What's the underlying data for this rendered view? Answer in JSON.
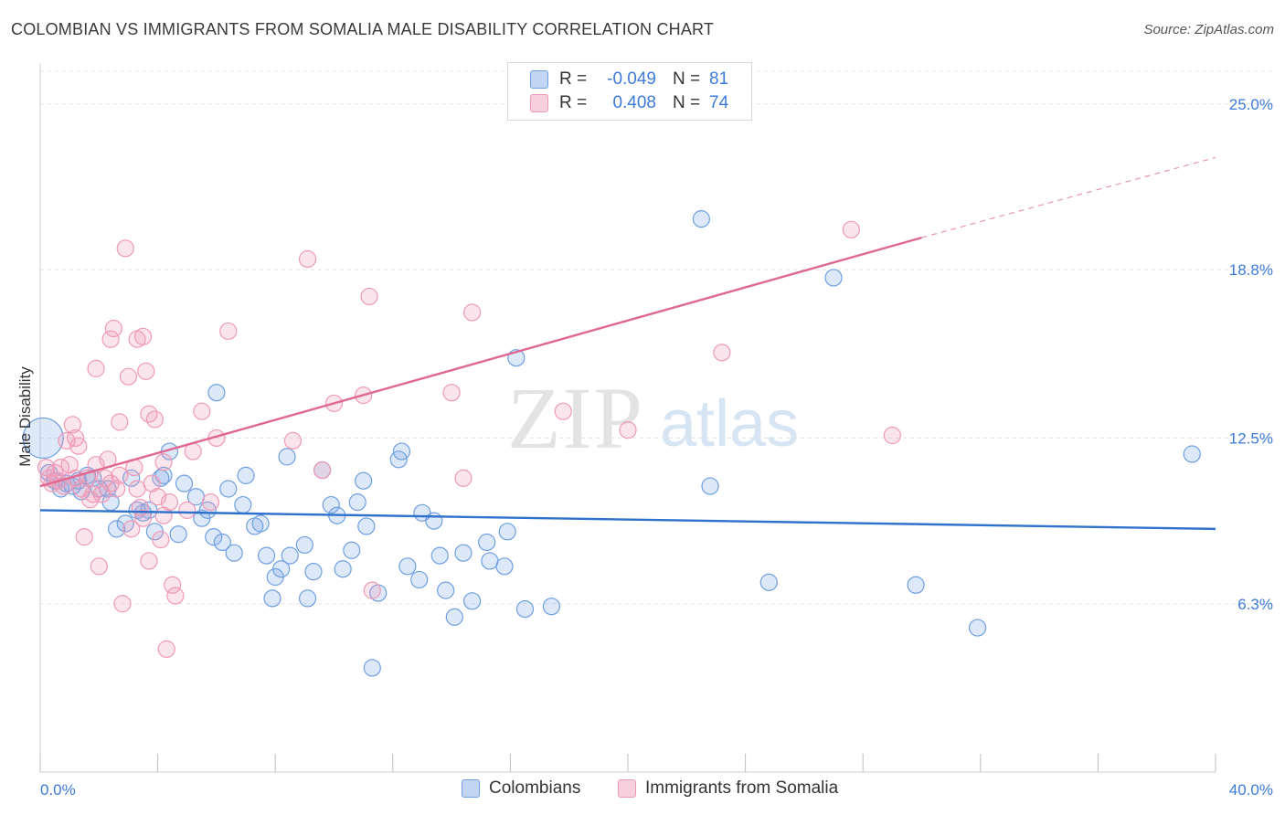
{
  "header": {
    "title": "COLOMBIAN VS IMMIGRANTS FROM SOMALIA MALE DISABILITY CORRELATION CHART",
    "source": "Source: ZipAtlas.com"
  },
  "watermark": {
    "zip": "ZIP",
    "atlas": "atlas"
  },
  "legend_top": {
    "rows": [
      {
        "r_label": "R =",
        "r_value": "-0.049",
        "n_label": "N =",
        "n_value": "81"
      },
      {
        "r_label": "R =",
        "r_value": "0.408",
        "n_label": "N =",
        "n_value": "74"
      }
    ]
  },
  "legend_bottom": {
    "items": [
      {
        "label": "Colombians"
      },
      {
        "label": "Immigrants from Somalia"
      }
    ]
  },
  "colors": {
    "colombians_fill": "rgba(120,165,230,0.25)",
    "colombians_stroke": "#6f9fe0",
    "colombians_line": "#2f72cc",
    "somalia_fill": "rgba(240,150,180,0.25)",
    "somalia_stroke": "#ee9ab6",
    "somalia_line": "#e06890",
    "tick_label": "#3d7bd9",
    "grid": "#e4e4e4"
  },
  "chart_data": {
    "type": "scatter",
    "ylabel": "Male Disability",
    "xlabel": "",
    "xlim": [
      0,
      40
    ],
    "ylim": [
      0,
      26.5
    ],
    "x_tick_labels": [
      {
        "value": 0,
        "label": "0.0%"
      },
      {
        "value": 40,
        "label": "40.0%"
      }
    ],
    "y_tick_labels": [
      {
        "value": 6.3,
        "label": "6.3%"
      },
      {
        "value": 12.5,
        "label": "12.5%"
      },
      {
        "value": 18.8,
        "label": "18.8%"
      },
      {
        "value": 25.0,
        "label": "25.0%"
      }
    ],
    "grid": "horizontal dashed",
    "series": [
      {
        "name": "Colombians",
        "trend": {
          "x": [
            0,
            40
          ],
          "y": [
            9.8,
            9.1
          ]
        },
        "points": [
          {
            "x": 0.1,
            "y": 12.5,
            "big": true
          },
          {
            "x": 0.3,
            "y": 11.2
          },
          {
            "x": 0.5,
            "y": 10.9
          },
          {
            "x": 0.7,
            "y": 10.6
          },
          {
            "x": 0.9,
            "y": 10.8
          },
          {
            "x": 1.1,
            "y": 10.7
          },
          {
            "x": 1.3,
            "y": 10.9
          },
          {
            "x": 1.4,
            "y": 10.5
          },
          {
            "x": 1.6,
            "y": 11.1
          },
          {
            "x": 1.8,
            "y": 11.0
          },
          {
            "x": 2.0,
            "y": 10.6
          },
          {
            "x": 2.3,
            "y": 10.6
          },
          {
            "x": 2.4,
            "y": 10.1
          },
          {
            "x": 2.6,
            "y": 9.1
          },
          {
            "x": 2.9,
            "y": 9.3
          },
          {
            "x": 3.1,
            "y": 11.0
          },
          {
            "x": 3.3,
            "y": 9.8
          },
          {
            "x": 3.5,
            "y": 9.7
          },
          {
            "x": 3.7,
            "y": 9.8
          },
          {
            "x": 3.9,
            "y": 9.0
          },
          {
            "x": 4.1,
            "y": 11.0
          },
          {
            "x": 4.2,
            "y": 11.1
          },
          {
            "x": 4.4,
            "y": 12.0
          },
          {
            "x": 4.7,
            "y": 8.9
          },
          {
            "x": 4.9,
            "y": 10.8
          },
          {
            "x": 5.3,
            "y": 10.3
          },
          {
            "x": 5.5,
            "y": 9.5
          },
          {
            "x": 5.7,
            "y": 9.8
          },
          {
            "x": 5.9,
            "y": 8.8
          },
          {
            "x": 6.0,
            "y": 14.2
          },
          {
            "x": 6.2,
            "y": 8.6
          },
          {
            "x": 6.4,
            "y": 10.6
          },
          {
            "x": 6.6,
            "y": 8.2
          },
          {
            "x": 6.9,
            "y": 10.0
          },
          {
            "x": 7.0,
            "y": 11.1
          },
          {
            "x": 7.3,
            "y": 9.2
          },
          {
            "x": 7.5,
            "y": 9.3
          },
          {
            "x": 7.7,
            "y": 8.1
          },
          {
            "x": 7.9,
            "y": 6.5
          },
          {
            "x": 8.0,
            "y": 7.3
          },
          {
            "x": 8.2,
            "y": 7.6
          },
          {
            "x": 8.4,
            "y": 11.8
          },
          {
            "x": 8.5,
            "y": 8.1
          },
          {
            "x": 9.0,
            "y": 8.5
          },
          {
            "x": 9.1,
            "y": 6.5
          },
          {
            "x": 9.3,
            "y": 7.5
          },
          {
            "x": 9.6,
            "y": 11.3
          },
          {
            "x": 9.9,
            "y": 10.0
          },
          {
            "x": 10.1,
            "y": 9.6
          },
          {
            "x": 10.3,
            "y": 7.6
          },
          {
            "x": 10.6,
            "y": 8.3
          },
          {
            "x": 10.8,
            "y": 10.1
          },
          {
            "x": 11.0,
            "y": 10.9
          },
          {
            "x": 11.1,
            "y": 9.2
          },
          {
            "x": 11.3,
            "y": 3.9
          },
          {
            "x": 11.5,
            "y": 6.7
          },
          {
            "x": 12.2,
            "y": 11.7
          },
          {
            "x": 12.3,
            "y": 12.0
          },
          {
            "x": 12.5,
            "y": 7.7
          },
          {
            "x": 12.9,
            "y": 7.2
          },
          {
            "x": 13.0,
            "y": 9.7
          },
          {
            "x": 13.4,
            "y": 9.4
          },
          {
            "x": 13.6,
            "y": 8.1
          },
          {
            "x": 13.8,
            "y": 6.8
          },
          {
            "x": 14.1,
            "y": 5.8
          },
          {
            "x": 14.4,
            "y": 8.2
          },
          {
            "x": 14.7,
            "y": 6.4
          },
          {
            "x": 15.2,
            "y": 8.6
          },
          {
            "x": 15.3,
            "y": 7.9
          },
          {
            "x": 15.8,
            "y": 7.7
          },
          {
            "x": 15.9,
            "y": 9.0
          },
          {
            "x": 16.2,
            "y": 15.5
          },
          {
            "x": 16.5,
            "y": 6.1
          },
          {
            "x": 17.4,
            "y": 6.2
          },
          {
            "x": 22.5,
            "y": 20.7
          },
          {
            "x": 22.8,
            "y": 10.7
          },
          {
            "x": 24.8,
            "y": 7.1
          },
          {
            "x": 27.0,
            "y": 18.5
          },
          {
            "x": 29.8,
            "y": 7.0
          },
          {
            "x": 31.9,
            "y": 5.4
          },
          {
            "x": 39.2,
            "y": 11.9
          }
        ]
      },
      {
        "name": "Immigrants from Somalia",
        "trend": {
          "x": [
            0,
            30
          ],
          "y": [
            10.7,
            20.0
          ]
        },
        "trend_extension": {
          "x": [
            30,
            40
          ],
          "y": [
            20.0,
            23.0
          ]
        },
        "points": [
          {
            "x": 0.2,
            "y": 11.4
          },
          {
            "x": 0.3,
            "y": 11.0
          },
          {
            "x": 0.4,
            "y": 10.8
          },
          {
            "x": 0.5,
            "y": 11.2
          },
          {
            "x": 0.6,
            "y": 10.9
          },
          {
            "x": 0.7,
            "y": 11.4
          },
          {
            "x": 0.8,
            "y": 10.7
          },
          {
            "x": 0.9,
            "y": 12.4
          },
          {
            "x": 1.0,
            "y": 11.5
          },
          {
            "x": 1.1,
            "y": 13.0
          },
          {
            "x": 1.2,
            "y": 11.0
          },
          {
            "x": 1.2,
            "y": 12.5
          },
          {
            "x": 1.3,
            "y": 12.2
          },
          {
            "x": 1.4,
            "y": 10.6
          },
          {
            "x": 1.5,
            "y": 8.8
          },
          {
            "x": 1.6,
            "y": 11.0
          },
          {
            "x": 1.7,
            "y": 10.2
          },
          {
            "x": 1.8,
            "y": 10.4
          },
          {
            "x": 1.9,
            "y": 11.5
          },
          {
            "x": 1.9,
            "y": 15.1
          },
          {
            "x": 2.0,
            "y": 7.7
          },
          {
            "x": 2.1,
            "y": 10.4
          },
          {
            "x": 2.2,
            "y": 11.0
          },
          {
            "x": 2.3,
            "y": 11.7
          },
          {
            "x": 2.4,
            "y": 10.8
          },
          {
            "x": 2.4,
            "y": 16.2
          },
          {
            "x": 2.5,
            "y": 16.6
          },
          {
            "x": 2.6,
            "y": 10.6
          },
          {
            "x": 2.7,
            "y": 11.1
          },
          {
            "x": 2.7,
            "y": 13.1
          },
          {
            "x": 2.8,
            "y": 6.3
          },
          {
            "x": 2.9,
            "y": 19.6
          },
          {
            "x": 3.0,
            "y": 14.8
          },
          {
            "x": 3.1,
            "y": 9.1
          },
          {
            "x": 3.2,
            "y": 11.4
          },
          {
            "x": 3.3,
            "y": 10.6
          },
          {
            "x": 3.3,
            "y": 16.2
          },
          {
            "x": 3.4,
            "y": 9.9
          },
          {
            "x": 3.5,
            "y": 9.5
          },
          {
            "x": 3.5,
            "y": 16.3
          },
          {
            "x": 3.6,
            "y": 15.0
          },
          {
            "x": 3.7,
            "y": 7.9
          },
          {
            "x": 3.7,
            "y": 13.4
          },
          {
            "x": 3.8,
            "y": 10.8
          },
          {
            "x": 3.9,
            "y": 13.2
          },
          {
            "x": 4.0,
            "y": 10.3
          },
          {
            "x": 4.1,
            "y": 8.7
          },
          {
            "x": 4.2,
            "y": 11.6
          },
          {
            "x": 4.2,
            "y": 9.6
          },
          {
            "x": 4.3,
            "y": 4.6
          },
          {
            "x": 4.4,
            "y": 10.1
          },
          {
            "x": 4.5,
            "y": 7.0
          },
          {
            "x": 4.6,
            "y": 6.6
          },
          {
            "x": 5.0,
            "y": 9.8
          },
          {
            "x": 5.2,
            "y": 12.0
          },
          {
            "x": 5.5,
            "y": 13.5
          },
          {
            "x": 5.8,
            "y": 10.1
          },
          {
            "x": 6.0,
            "y": 12.5
          },
          {
            "x": 6.4,
            "y": 16.5
          },
          {
            "x": 8.6,
            "y": 12.4
          },
          {
            "x": 9.1,
            "y": 19.2
          },
          {
            "x": 9.6,
            "y": 11.3
          },
          {
            "x": 10.0,
            "y": 13.8
          },
          {
            "x": 11.0,
            "y": 14.1
          },
          {
            "x": 11.2,
            "y": 17.8
          },
          {
            "x": 11.3,
            "y": 6.8
          },
          {
            "x": 14.0,
            "y": 14.2
          },
          {
            "x": 14.4,
            "y": 11.0
          },
          {
            "x": 14.7,
            "y": 17.2
          },
          {
            "x": 17.8,
            "y": 13.5
          },
          {
            "x": 20.0,
            "y": 12.8
          },
          {
            "x": 23.2,
            "y": 15.7
          },
          {
            "x": 27.6,
            "y": 20.3
          },
          {
            "x": 29.0,
            "y": 12.6
          }
        ]
      }
    ]
  }
}
